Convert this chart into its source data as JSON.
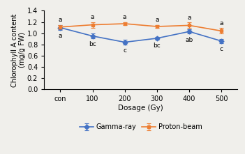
{
  "x_labels": [
    "con",
    "100",
    "200",
    "300",
    "400",
    "500"
  ],
  "x_positions": [
    0,
    1,
    2,
    3,
    4,
    5
  ],
  "gamma_values": [
    1.1,
    0.95,
    0.84,
    0.91,
    1.03,
    0.86
  ],
  "gamma_errors": [
    0.04,
    0.04,
    0.04,
    0.03,
    0.04,
    0.04
  ],
  "proton_values": [
    1.11,
    1.15,
    1.17,
    1.12,
    1.14,
    1.04
  ],
  "proton_errors": [
    0.04,
    0.05,
    0.03,
    0.03,
    0.05,
    0.05
  ],
  "gamma_color": "#4472C4",
  "proton_color": "#ED7D31",
  "gamma_label": "Gamma-ray",
  "proton_label": "Proton-beam",
  "xlabel": "Dosage (Gy)",
  "ylabel": "Chlorophyll A content\n(mg/g FW)",
  "ylim": [
    0.0,
    1.4
  ],
  "yticks": [
    0.0,
    0.2,
    0.4,
    0.6,
    0.8,
    1.0,
    1.2,
    1.4
  ],
  "gamma_annotations": [
    "a",
    "bc",
    "c",
    "bc",
    "ab",
    "c"
  ],
  "proton_annotations": [
    "a",
    "a",
    "a",
    "a",
    "a",
    "a"
  ],
  "background_color": "#f0efeb"
}
